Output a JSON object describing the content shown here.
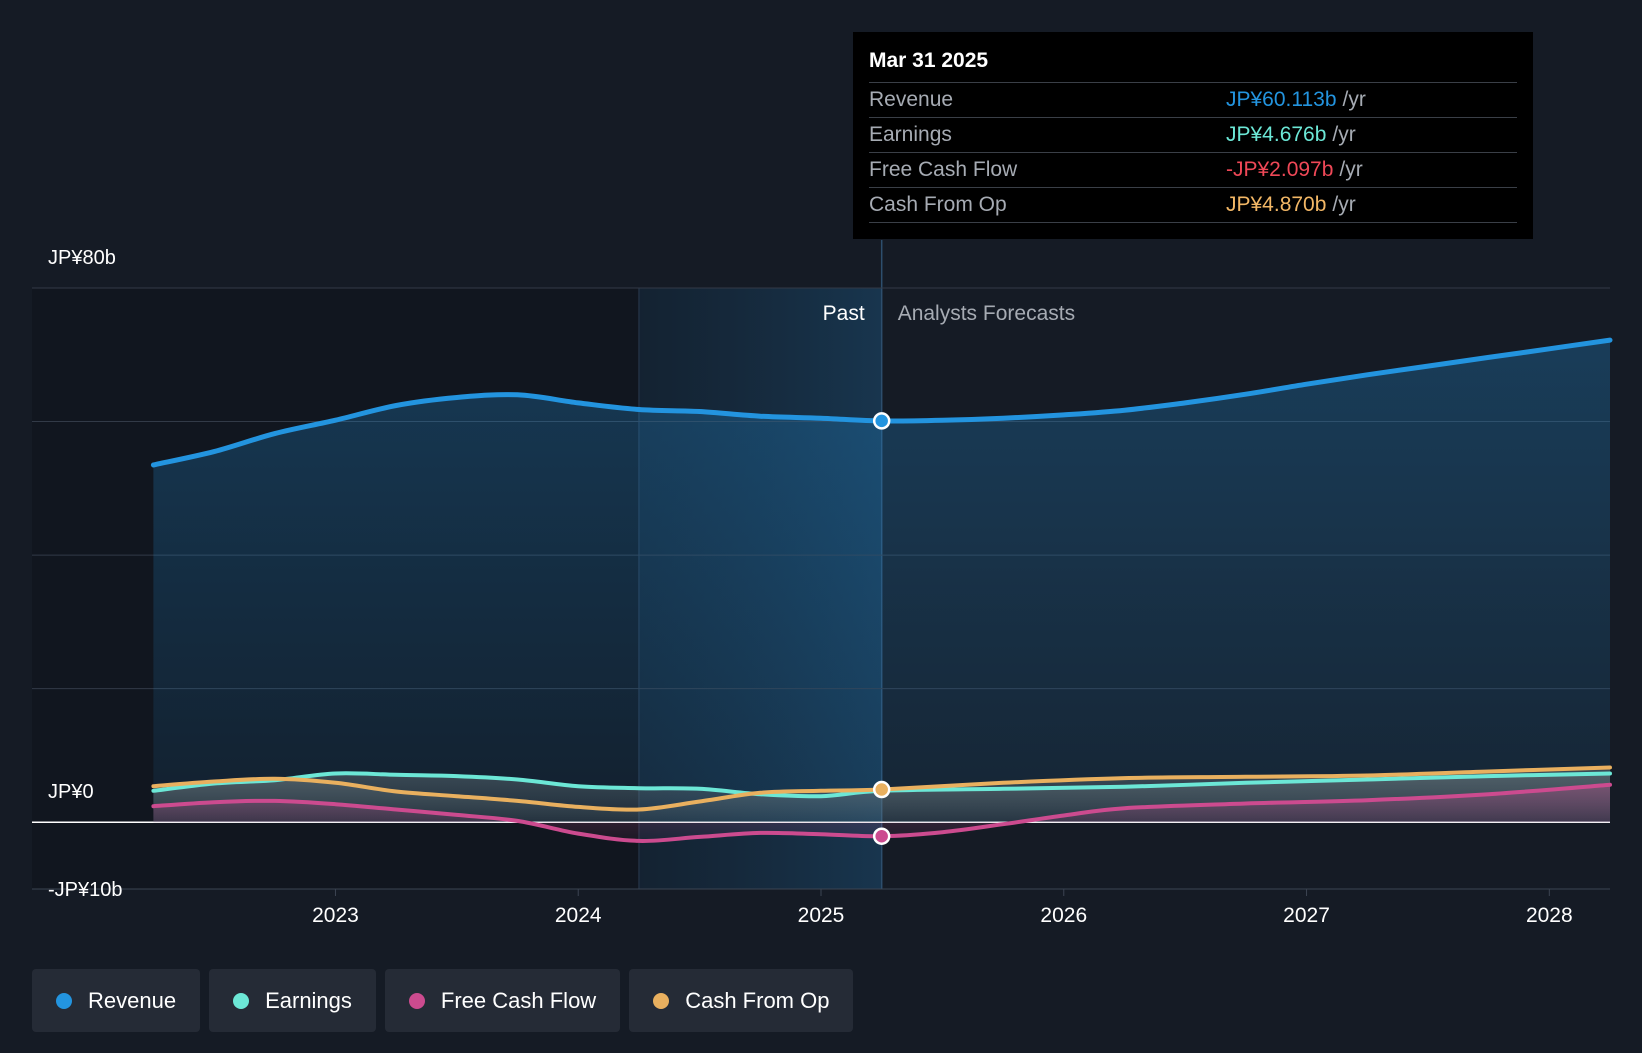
{
  "tooltip": {
    "date": "Mar 31 2025",
    "rows": [
      {
        "label": "Revenue",
        "value": "JP¥60.113b",
        "unit": "/yr",
        "color": "#2394df"
      },
      {
        "label": "Earnings",
        "value": "JP¥4.676b",
        "unit": "/yr",
        "color": "#6ce7d6"
      },
      {
        "label": "Free Cash Flow",
        "value": "-JP¥2.097b",
        "unit": "/yr",
        "color": "#ef4857"
      },
      {
        "label": "Cash From Op",
        "value": "JP¥4.870b",
        "unit": "/yr",
        "color": "#f2b766"
      }
    ]
  },
  "regions": {
    "past_label": "Past",
    "forecast_label": "Analysts Forecasts"
  },
  "legend": [
    {
      "label": "Revenue",
      "color": "#2394df"
    },
    {
      "label": "Earnings",
      "color": "#6ce7d6"
    },
    {
      "label": "Free Cash Flow",
      "color": "#cc4b8f"
    },
    {
      "label": "Cash From Op",
      "color": "#e9b05f"
    }
  ],
  "chart_data": {
    "type": "line",
    "y_tick_labels": [
      {
        "value": 80,
        "label": "JP¥80b"
      },
      {
        "value": 0,
        "label": "JP¥0"
      },
      {
        "value": -10,
        "label": "-JP¥10b"
      }
    ],
    "x_tick_labels": [
      {
        "value": 2023.0,
        "label": "2023"
      },
      {
        "value": 2024.0,
        "label": "2024"
      },
      {
        "value": 2025.0,
        "label": "2025"
      },
      {
        "value": 2026.0,
        "label": "2026"
      },
      {
        "value": 2027.0,
        "label": "2027"
      },
      {
        "value": 2028.0,
        "label": "2028"
      }
    ],
    "xlim": [
      2021.75,
      2028.25
    ],
    "ylim": [
      -10,
      80
    ],
    "grid": true,
    "divider_x": 2025.25,
    "highlight_start_x": 2024.25,
    "series": [
      {
        "name": "Revenue",
        "color": "#2394df",
        "x": [
          2022.25,
          2022.5,
          2022.75,
          2023.0,
          2023.25,
          2023.5,
          2023.75,
          2024.0,
          2024.25,
          2024.5,
          2024.75,
          2025.0,
          2025.25,
          2025.5,
          2025.75,
          2026.0,
          2026.25,
          2026.5,
          2026.75,
          2027.0,
          2027.25,
          2027.5,
          2027.75,
          2028.0,
          2028.25
        ],
        "y": [
          53.5,
          55.5,
          58.2,
          60.2,
          62.4,
          63.6,
          64.0,
          62.8,
          61.8,
          61.5,
          60.8,
          60.5,
          60.1,
          60.2,
          60.5,
          61.0,
          61.7,
          62.8,
          64.1,
          65.6,
          67.0,
          68.3,
          69.6,
          70.9,
          72.2
        ]
      },
      {
        "name": "Earnings",
        "color": "#6ce7d6",
        "x": [
          2022.25,
          2022.5,
          2022.75,
          2023.0,
          2023.25,
          2023.5,
          2023.75,
          2024.0,
          2024.25,
          2024.5,
          2024.75,
          2025.0,
          2025.25,
          2025.75,
          2026.25,
          2026.75,
          2027.25,
          2027.75,
          2028.25
        ],
        "y": [
          4.7,
          5.8,
          6.3,
          7.3,
          7.1,
          6.9,
          6.4,
          5.4,
          5.1,
          5.0,
          4.2,
          3.9,
          4.7,
          5.0,
          5.3,
          5.9,
          6.4,
          6.9,
          7.3
        ]
      },
      {
        "name": "Free Cash Flow",
        "color": "#cc4b8f",
        "x": [
          2022.25,
          2022.5,
          2022.75,
          2023.0,
          2023.25,
          2023.5,
          2023.75,
          2024.0,
          2024.25,
          2024.5,
          2024.75,
          2025.0,
          2025.25,
          2025.5,
          2025.75,
          2026.0,
          2026.25,
          2026.75,
          2027.25,
          2027.75,
          2028.25
        ],
        "y": [
          2.4,
          3.0,
          3.2,
          2.7,
          1.9,
          1.1,
          0.2,
          -1.7,
          -2.8,
          -2.2,
          -1.6,
          -1.8,
          -2.1,
          -1.5,
          -0.3,
          1.0,
          2.1,
          2.8,
          3.3,
          4.2,
          5.6
        ]
      },
      {
        "name": "Cash From Op",
        "color": "#e9b05f",
        "x": [
          2022.25,
          2022.5,
          2022.75,
          2023.0,
          2023.25,
          2023.5,
          2023.75,
          2024.0,
          2024.25,
          2024.5,
          2024.75,
          2025.0,
          2025.25,
          2025.75,
          2026.25,
          2026.75,
          2027.25,
          2027.75,
          2028.25
        ],
        "y": [
          5.4,
          6.1,
          6.5,
          5.9,
          4.6,
          3.9,
          3.2,
          2.3,
          1.9,
          3.1,
          4.4,
          4.7,
          4.9,
          5.9,
          6.6,
          6.8,
          7.0,
          7.6,
          8.2
        ]
      }
    ],
    "highlight_points": [
      {
        "series": "Revenue",
        "x": 2025.25,
        "y": 60.1
      },
      {
        "series": "Cash From Op",
        "x": 2025.25,
        "y": 4.9
      },
      {
        "series": "Free Cash Flow",
        "x": 2025.25,
        "y": -2.1
      }
    ]
  }
}
